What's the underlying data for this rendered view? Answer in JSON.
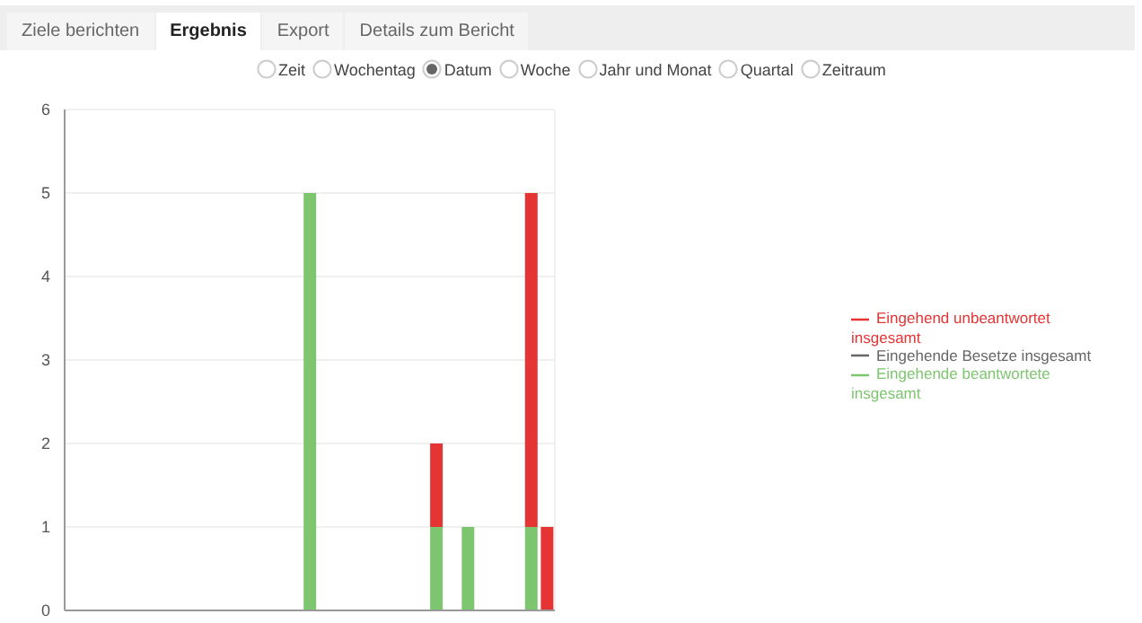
{
  "chart_data": {
    "type": "bar",
    "stacked": true,
    "annotations": [
      "Ziele berichten",
      "Ergebnis",
      "Export",
      "Details zum Bericht",
      "Zeit",
      "Wochentag",
      "Datum",
      "Woche",
      "Jahr und Monat",
      "Quartal",
      "Zeitraum"
    ],
    "categories": [
      null,
      null,
      null,
      null,
      null,
      null,
      null,
      null,
      null,
      null,
      null,
      null,
      null,
      null,
      null,
      null,
      null,
      null,
      null,
      null,
      null,
      null,
      null,
      null,
      null,
      null,
      null,
      null,
      null,
      null,
      null
    ],
    "series": [
      {
        "name": "Eingehende beantwortete insgesamt",
        "color": "#7dc66f",
        "values": [
          0,
          0,
          0,
          0,
          0,
          0,
          0,
          0,
          0,
          0,
          0,
          0,
          0,
          0,
          0,
          5,
          0,
          0,
          0,
          0,
          0,
          0,
          0,
          1,
          0,
          1,
          0,
          0,
          0,
          1,
          0
        ]
      },
      {
        "name": "Eingehend unbeantwortet insgesamt",
        "color": "#e53434",
        "values": [
          0,
          0,
          0,
          0,
          0,
          0,
          0,
          0,
          0,
          0,
          0,
          0,
          0,
          0,
          0,
          0,
          0,
          0,
          0,
          0,
          0,
          0,
          0,
          1,
          0,
          0,
          0,
          0,
          0,
          4,
          1
        ]
      },
      {
        "name": "Eingehende Besetze insgesamt",
        "color": "#666666",
        "values": [
          0,
          0,
          0,
          0,
          0,
          0,
          0,
          0,
          0,
          0,
          0,
          0,
          0,
          0,
          0,
          0,
          0,
          0,
          0,
          0,
          0,
          0,
          0,
          0,
          0,
          0,
          0,
          0,
          0,
          0,
          0
        ]
      }
    ],
    "ylim": [
      0,
      6
    ],
    "yticks": [
      0,
      1,
      2,
      3,
      4,
      5,
      6
    ],
    "grid": true,
    "legend": "right",
    "tick_labels": "y"
  }
}
